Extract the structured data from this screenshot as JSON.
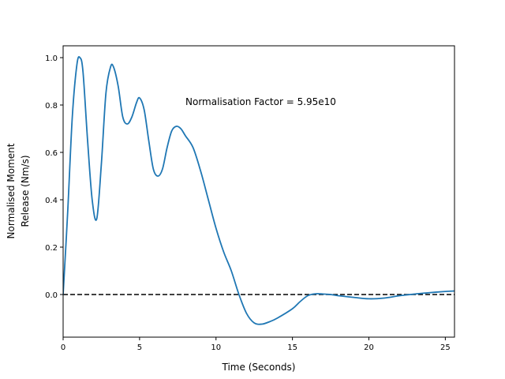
{
  "chart_data": {
    "type": "line",
    "xlabel": "Time (Seconds)",
    "ylabel_lines": [
      "Normalised Moment",
      "Release (Nm/s)"
    ],
    "annotation": "Normalisation Factor = 5.95e10",
    "xlim": [
      0,
      25.6
    ],
    "ylim": [
      -0.18,
      1.05
    ],
    "x_ticks": [
      0,
      5,
      10,
      15,
      20,
      25
    ],
    "y_ticks": [
      0.0,
      0.2,
      0.4,
      0.6,
      0.8,
      1.0
    ],
    "x_tick_labels": [
      "0",
      "5",
      "10",
      "15",
      "20",
      "25"
    ],
    "y_tick_labels": [
      "0.0",
      "0.2",
      "0.4",
      "0.6",
      "0.8",
      "1.0"
    ],
    "grid": false,
    "series": [
      {
        "color": "#1f77b4",
        "x": [
          0,
          0.3,
          0.6,
          0.9,
          1.1,
          1.3,
          1.6,
          1.9,
          2.2,
          2.5,
          2.8,
          3.1,
          3.3,
          3.6,
          3.9,
          4.2,
          4.5,
          4.8,
          5.0,
          5.3,
          5.6,
          5.9,
          6.2,
          6.5,
          6.8,
          7.1,
          7.4,
          7.7,
          8.0,
          8.5,
          9.0,
          9.5,
          10.0,
          10.5,
          11.0,
          11.5,
          12.0,
          12.5,
          13.0,
          13.5,
          14.0,
          15.0,
          15.5,
          16.0,
          16.5,
          17.0,
          17.5,
          18.0,
          19.0,
          20.0,
          21.0,
          22.0,
          23.0,
          24.0,
          25.0,
          25.6
        ],
        "y": [
          0.0,
          0.35,
          0.75,
          0.97,
          1.0,
          0.94,
          0.65,
          0.4,
          0.32,
          0.55,
          0.85,
          0.96,
          0.96,
          0.88,
          0.75,
          0.72,
          0.75,
          0.81,
          0.83,
          0.78,
          0.65,
          0.53,
          0.5,
          0.53,
          0.62,
          0.69,
          0.71,
          0.7,
          0.67,
          0.62,
          0.52,
          0.4,
          0.28,
          0.18,
          0.1,
          0.0,
          -0.08,
          -0.12,
          -0.125,
          -0.115,
          -0.1,
          -0.06,
          -0.03,
          -0.005,
          0.003,
          0.002,
          0.0,
          -0.005,
          -0.012,
          -0.018,
          -0.015,
          -0.005,
          0.002,
          0.008,
          0.013,
          0.015
        ]
      }
    ],
    "reference_lines": [
      {
        "y": 0,
        "style": "dashed",
        "color": "#000000"
      }
    ]
  }
}
